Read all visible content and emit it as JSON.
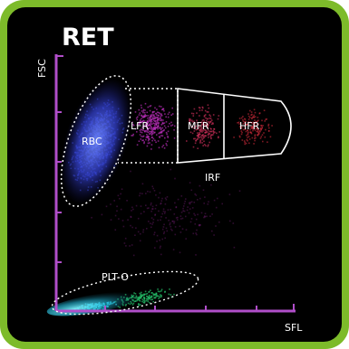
{
  "colors": {
    "frame": "#7dbb2a",
    "background": "#000000",
    "axis": "#b04ec9",
    "outline": "#ffffff",
    "rbc": "#3b4fe0",
    "lfr": "#c02fc0",
    "mfr": "#d0305a",
    "hfr": "#d02a3a",
    "plt": "#23c06a",
    "plt_cyan": "#2fd0e8"
  },
  "chart_data": {
    "type": "scatter",
    "title": "RET",
    "xlabel": "SFL",
    "ylabel": "FSC",
    "grid": false,
    "regions": [
      {
        "name": "RBC",
        "label": "RBC"
      },
      {
        "name": "LFR",
        "label": "LFR"
      },
      {
        "name": "MFR",
        "label": "MFR"
      },
      {
        "name": "HFR",
        "label": "HFR"
      },
      {
        "name": "IRF",
        "label": "IRF"
      },
      {
        "name": "PLT-O",
        "label": "PLT-O"
      }
    ]
  }
}
